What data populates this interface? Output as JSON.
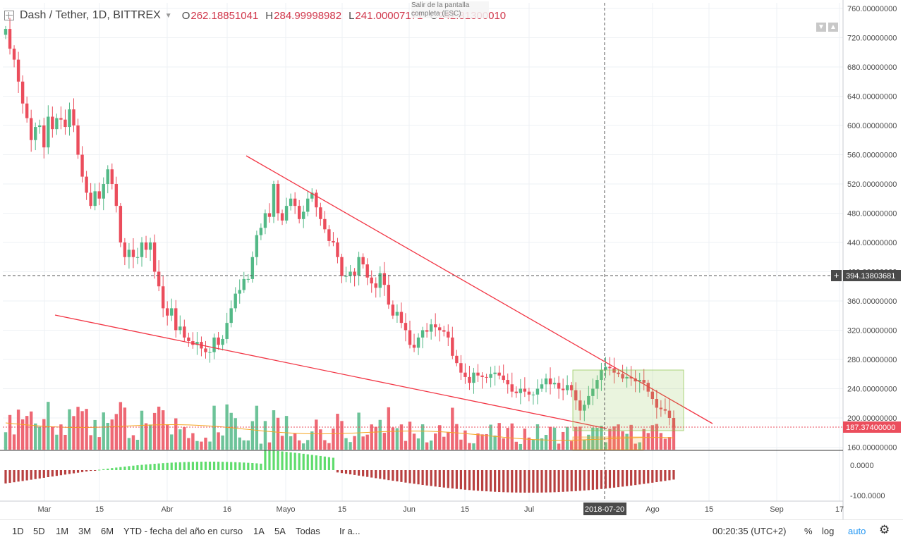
{
  "header": {
    "symbol": "Dash / Tether, 1D, BITTREX",
    "open_label": "O",
    "open": "262.18851041",
    "high_label": "H",
    "high": "284.99998982",
    "low_label": "L",
    "low": "241.00007171",
    "close_label": "C",
    "close": "242.81300010"
  },
  "tooltip": "Salir de la pantalla completa (ESC)",
  "price_axis": {
    "ticks": [
      "760.00000000",
      "720.00000000",
      "680.00000000",
      "640.00000000",
      "600.00000000",
      "560.00000000",
      "520.00000000",
      "480.00000000",
      "440.00000000",
      "400.00000000",
      "360.00000000",
      "320.00000000",
      "280.00000000",
      "240.00000000",
      "200.00000000",
      "160.00000000"
    ],
    "crosshair_label": "394.13803681",
    "last_price_label": "187.37400000",
    "osc_ticks": [
      "0.0000",
      "-100.0000"
    ]
  },
  "time_axis": {
    "labels": [
      "Mar",
      "15",
      "Abr",
      "16",
      "Mayo",
      "15",
      "Jun",
      "15",
      "Jul",
      "2018-07-20",
      "Ago",
      "15",
      "Sep",
      "17"
    ]
  },
  "colors": {
    "up": "#53b987",
    "down": "#eb4d5c",
    "trend": "#f23645",
    "ma": "#f5a623",
    "box": "#8bc34a",
    "osc_up": "#5fdc6c",
    "osc_down": "#b84040"
  },
  "chart_data": {
    "type": "candlestick",
    "title": "Dash / Tether, 1D, BITTREX",
    "ylim": [
      150,
      770
    ],
    "x_range": [
      "2018-02-22",
      "2018-09-18"
    ],
    "closes": [
      732,
      705,
      690,
      660,
      630,
      610,
      580,
      598,
      600,
      570,
      612,
      595,
      610,
      608,
      598,
      622,
      600,
      560,
      530,
      508,
      490,
      510,
      500,
      520,
      540,
      520,
      490,
      440,
      420,
      430,
      420,
      420,
      440,
      430,
      440,
      400,
      380,
      350,
      340,
      350,
      320,
      325,
      310,
      305,
      300,
      304,
      295,
      290,
      290,
      310,
      300,
      308,
      330,
      350,
      370,
      375,
      390,
      390,
      420,
      450,
      460,
      480,
      475,
      520,
      480,
      470,
      490,
      500,
      490,
      472,
      482,
      500,
      508,
      488,
      472,
      458,
      442,
      440,
      420,
      394,
      394,
      400,
      395,
      420,
      410,
      392,
      384,
      378,
      398,
      382,
      355,
      340,
      345,
      330,
      320,
      300,
      296,
      310,
      320,
      318,
      328,
      324,
      320,
      318,
      310,
      285,
      275,
      262,
      256,
      248,
      262,
      258,
      256,
      255,
      260,
      262,
      258,
      252,
      246,
      236,
      234,
      240,
      236,
      232,
      232,
      240,
      246,
      254,
      246,
      248,
      240,
      238,
      245,
      238,
      224,
      210,
      218,
      230,
      240,
      252,
      266,
      270,
      268,
      262,
      260,
      254,
      256,
      254,
      250,
      252,
      248,
      236,
      226,
      214,
      212,
      210,
      200,
      187
    ],
    "annotations": [
      "descending trendline (upper)",
      "descending trendline (lower)",
      "highlighted range rectangle"
    ],
    "indicators": [
      "Volume",
      "Volume MA",
      "Oscillator"
    ]
  },
  "bottom": {
    "ranges": [
      "1D",
      "5D",
      "1M",
      "3M",
      "6M",
      "YTD - fecha del año en curso",
      "1A",
      "5A",
      "Todas",
      "Ir a..."
    ],
    "clock": "00:20:35 (UTC+2)",
    "percent": "%",
    "log": "log",
    "auto": "auto"
  }
}
